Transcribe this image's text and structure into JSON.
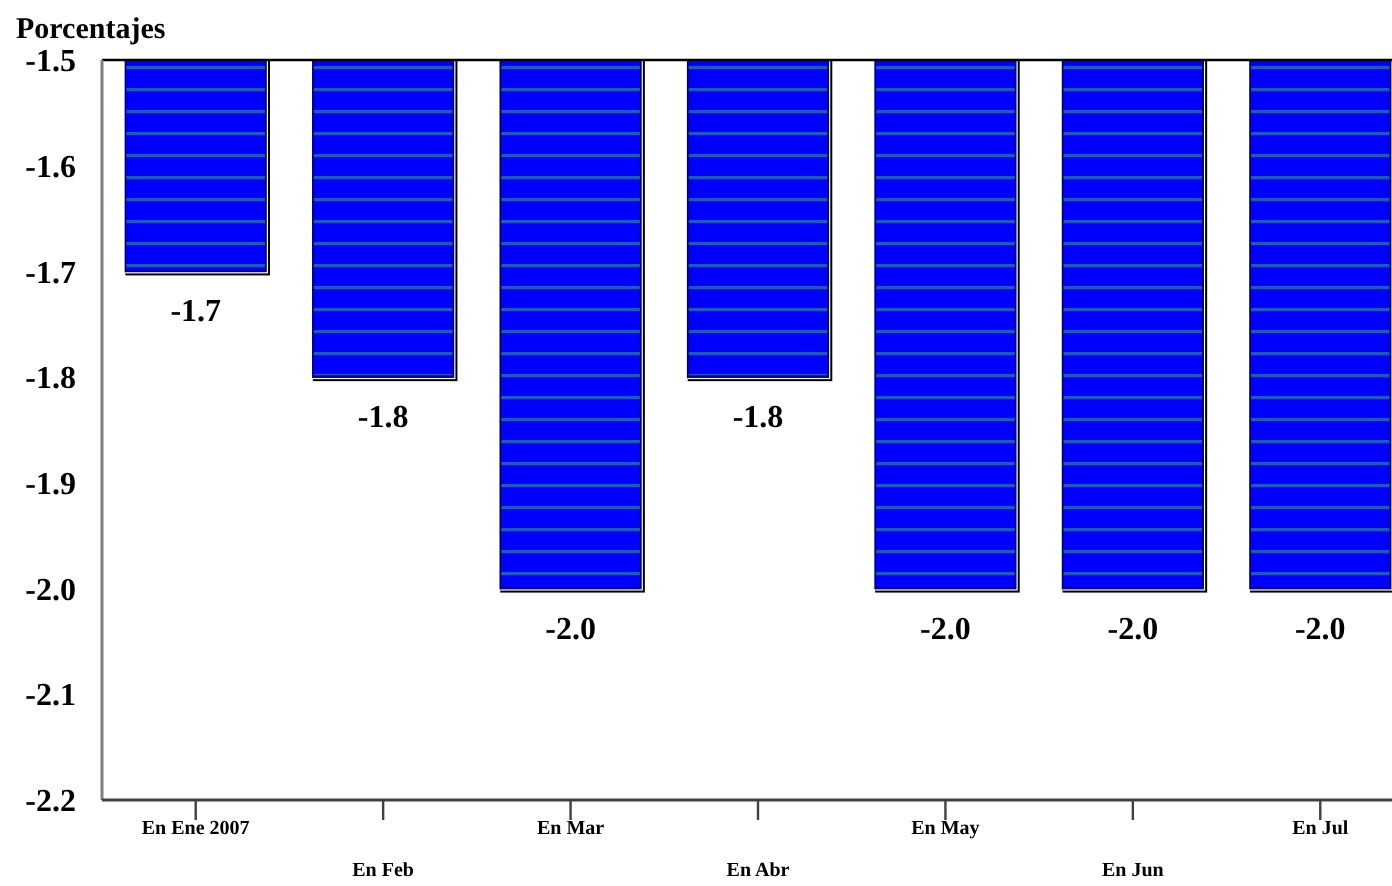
{
  "chart_data": {
    "type": "bar",
    "ylabel": "Porcentajes",
    "categories": [
      "En Ene 2007",
      "En Feb",
      "En Mar",
      "En Abr",
      "En May",
      "En Jun",
      "En Jul"
    ],
    "values": [
      -1.7,
      -1.8,
      -2.0,
      -1.8,
      -2.0,
      -2.0,
      -2.0
    ],
    "value_labels": [
      "-1.7",
      "-1.8",
      "-2.0",
      "-1.8",
      "-2.0",
      "-2.0",
      "-2.0"
    ],
    "color": "#0000ff",
    "ylim": [
      -2.2,
      -1.5
    ],
    "yticks": [
      -1.5,
      -1.6,
      -1.7,
      -1.8,
      -1.9,
      {
        "value": -2,
        "label": "-2.0"
      },
      -2.1,
      -2.2
    ]
  }
}
